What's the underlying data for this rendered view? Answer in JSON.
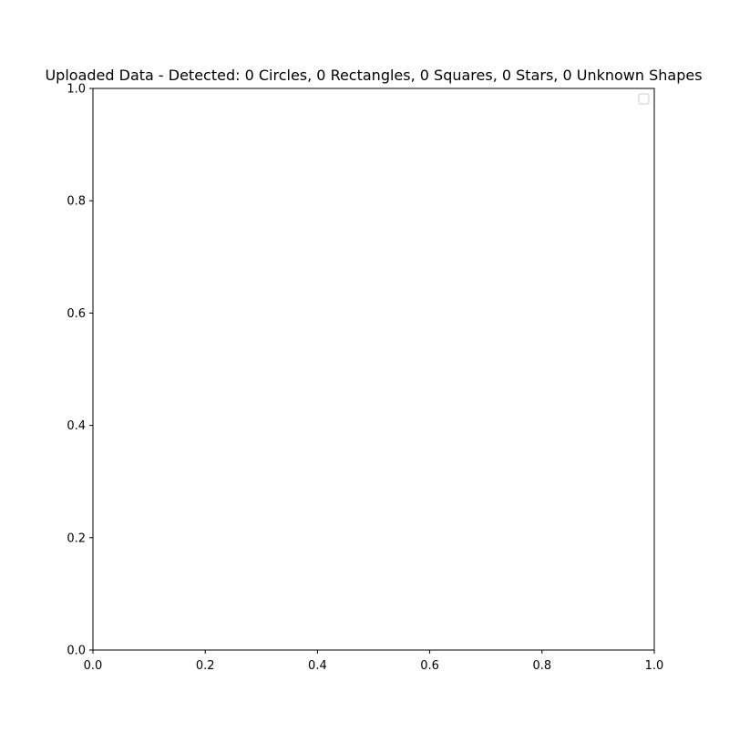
{
  "chart_data": {
    "type": "scatter",
    "title": "Uploaded Data - Detected: 0 Circles, 0 Rectangles, 0 Squares, 0 Stars, 0 Unknown Shapes",
    "xlabel": "",
    "ylabel": "",
    "xlim": [
      0.0,
      1.0
    ],
    "ylim": [
      0.0,
      1.0
    ],
    "x_ticks": [
      "0.0",
      "0.2",
      "0.4",
      "0.6",
      "0.8",
      "1.0"
    ],
    "y_ticks": [
      "0.0",
      "0.2",
      "0.4",
      "0.6",
      "0.8",
      "1.0"
    ],
    "series": [],
    "grid": false,
    "legend": {
      "placement": "top-right",
      "entries": []
    }
  },
  "colors": {
    "axis": "#000000",
    "background": "#ffffff",
    "legend_border": "#cccccc"
  }
}
